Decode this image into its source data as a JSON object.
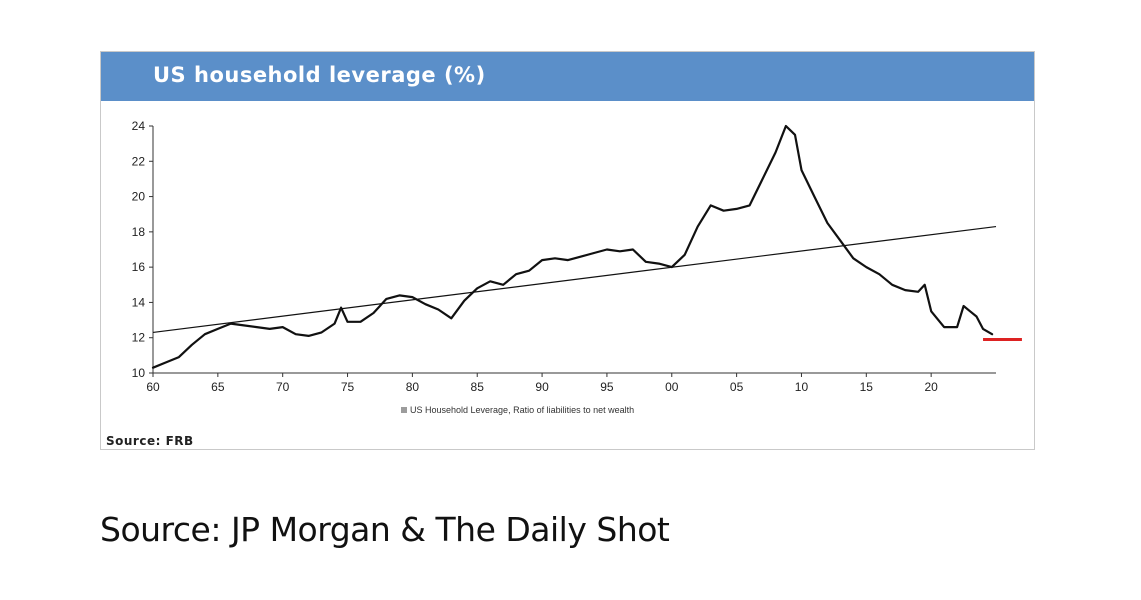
{
  "panel": {
    "title": "US household leverage (%)",
    "source": "Source: FRB",
    "header_color": "#5b8fc9"
  },
  "footer": {
    "source": "Source: JP Morgan & The Daily Shot"
  },
  "chart_data": {
    "type": "line",
    "title": "US household leverage (%)",
    "xlabel": "",
    "ylabel": "",
    "xlim": [
      1960,
      2025
    ],
    "ylim": [
      10,
      24
    ],
    "x_tick_values": [
      1960,
      1965,
      1970,
      1975,
      1980,
      1985,
      1990,
      1995,
      2000,
      2005,
      2010,
      2015,
      2020
    ],
    "x_tick_labels": [
      "60",
      "65",
      "70",
      "75",
      "80",
      "85",
      "90",
      "95",
      "00",
      "05",
      "10",
      "15",
      "20"
    ],
    "y_ticks": [
      10,
      12,
      14,
      16,
      18,
      20,
      22,
      24
    ],
    "grid": false,
    "legend": {
      "placement": "bottom-center",
      "entries": [
        "US Household Leverage, Ratio of liabilities to net wealth"
      ]
    },
    "series": [
      {
        "name": "US Household Leverage, Ratio of liabilities to net wealth",
        "color": "#111111",
        "x": [
          1960,
          1961,
          1962,
          1963,
          1964,
          1965,
          1966,
          1967,
          1968,
          1969,
          1970,
          1971,
          1972,
          1973,
          1974,
          1974.5,
          1975,
          1976,
          1977,
          1978,
          1979,
          1980,
          1981,
          1982,
          1983,
          1984,
          1985,
          1986,
          1987,
          1988,
          1989,
          1990,
          1991,
          1992,
          1993,
          1994,
          1995,
          1996,
          1997,
          1998,
          1999,
          2000,
          2001,
          2002,
          2003,
          2004,
          2005,
          2006,
          2007,
          2008,
          2008.8,
          2009.5,
          2010,
          2011,
          2012,
          2013,
          2014,
          2015,
          2016,
          2017,
          2018,
          2019,
          2019.5,
          2020,
          2021,
          2022,
          2022.5,
          2023,
          2023.5,
          2024,
          2024.7
        ],
        "y": [
          10.3,
          10.6,
          10.9,
          11.6,
          12.2,
          12.5,
          12.8,
          12.7,
          12.6,
          12.5,
          12.6,
          12.2,
          12.1,
          12.3,
          12.8,
          13.7,
          12.9,
          12.9,
          13.4,
          14.2,
          14.4,
          14.3,
          13.9,
          13.6,
          13.1,
          14.1,
          14.8,
          15.2,
          15.0,
          15.6,
          15.8,
          16.4,
          16.5,
          16.4,
          16.6,
          16.8,
          17.0,
          16.9,
          17.0,
          16.3,
          16.2,
          16.0,
          16.7,
          18.3,
          19.5,
          19.2,
          19.3,
          19.5,
          21.0,
          22.5,
          24.0,
          23.5,
          21.5,
          20.0,
          18.5,
          17.5,
          16.5,
          16.0,
          15.6,
          15.0,
          14.7,
          14.6,
          15.0,
          13.5,
          12.6,
          12.6,
          13.8,
          13.5,
          13.2,
          12.5,
          12.2
        ]
      }
    ],
    "trendline": {
      "from": [
        1960,
        12.3
      ],
      "to": [
        2025,
        18.3
      ]
    },
    "reference_marker": {
      "x": [
        2024,
        2027
      ],
      "y": 11.9,
      "color": "#dd2222"
    }
  }
}
